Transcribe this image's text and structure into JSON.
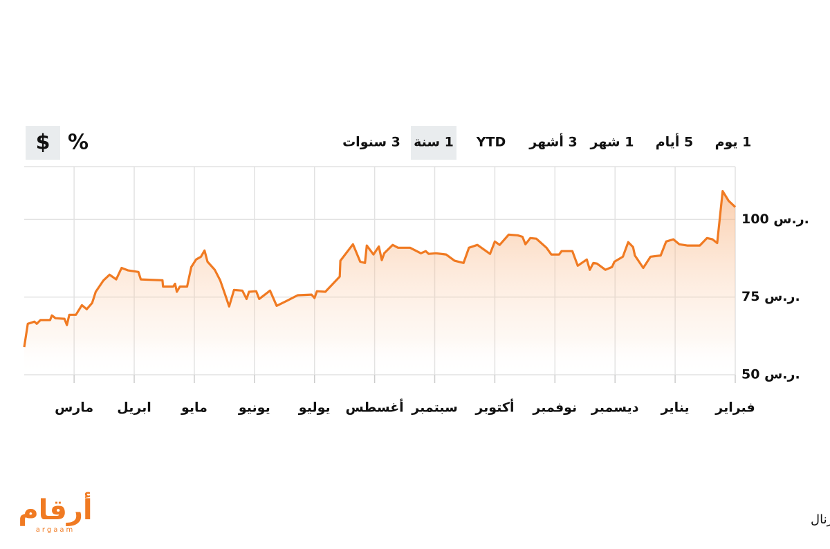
{
  "chart_data": {
    "type": "line",
    "range_buttons": [
      "1 يوم",
      "5 أيام",
      "1 شهر",
      "3 أشهر",
      "YTD",
      "1 سنة",
      "3 سنوات"
    ],
    "active_range": 5,
    "unit_buttons": [
      "%",
      "$"
    ],
    "active_unit": 1,
    "x": [
      0.17,
      0.23,
      0.34,
      0.38,
      0.44,
      0.6,
      0.63,
      0.69,
      0.84,
      0.88,
      0.92,
      1.03,
      1.13,
      1.21,
      1.3,
      1.36,
      1.49,
      1.59,
      1.7,
      1.79,
      1.9,
      2.07,
      2.11,
      2.47,
      2.48,
      2.65,
      2.68,
      2.71,
      2.76,
      2.88,
      2.95,
      3.03,
      3.11,
      3.17,
      3.22,
      3.34,
      3.43,
      3.51,
      3.58,
      3.66,
      3.8,
      3.87,
      3.91,
      4.03,
      4.08,
      4.26,
      4.37,
      4.54,
      4.72,
      4.95,
      5.0,
      5.04,
      5.18,
      5.42,
      5.43,
      5.64,
      5.76,
      5.84,
      5.87,
      5.98,
      6.07,
      6.12,
      6.16,
      6.3,
      6.39,
      6.59,
      6.77,
      6.85,
      6.9,
      7.02,
      7.19,
      7.33,
      7.48,
      7.57,
      7.71,
      7.92,
      8.0,
      8.08,
      8.23,
      8.38,
      8.46,
      8.51,
      8.59,
      8.69,
      8.86,
      8.94,
      9.07,
      9.11,
      9.29,
      9.38,
      9.53,
      9.58,
      9.64,
      9.7,
      9.84,
      9.95,
      9.99,
      10.13,
      10.22,
      10.3,
      10.33,
      10.47,
      10.59,
      10.76,
      10.85,
      10.97,
      11.07,
      11.2,
      11.41,
      11.53,
      11.62,
      11.7,
      11.79,
      11.89,
      12.0
    ],
    "series": [
      {
        "color": "#f07a22",
        "values": [
          58.9,
          66.4,
          67.1,
          66.4,
          67.6,
          67.6,
          69.1,
          68.2,
          68.0,
          66.0,
          69.3,
          69.3,
          72.4,
          71.1,
          73.1,
          76.7,
          80.4,
          82.2,
          80.7,
          84.4,
          83.6,
          83.1,
          80.7,
          80.4,
          78.4,
          78.4,
          79.3,
          76.7,
          78.4,
          78.4,
          84.7,
          87.1,
          88.0,
          90.0,
          86.4,
          83.8,
          80.4,
          76.0,
          72.0,
          77.3,
          77.1,
          74.4,
          76.7,
          76.9,
          74.4,
          77.1,
          72.2,
          73.8,
          75.6,
          75.8,
          74.7,
          76.9,
          76.7,
          81.6,
          86.7,
          92.0,
          86.4,
          86.0,
          91.6,
          88.7,
          91.3,
          86.9,
          89.1,
          91.8,
          90.9,
          90.9,
          89.1,
          89.8,
          88.9,
          89.1,
          88.7,
          86.7,
          86.0,
          90.9,
          91.8,
          88.9,
          92.9,
          91.8,
          95.1,
          94.9,
          94.4,
          92.0,
          94.0,
          93.8,
          90.9,
          88.7,
          88.7,
          89.8,
          89.8,
          85.1,
          87.1,
          83.8,
          86.0,
          85.8,
          83.8,
          84.7,
          86.4,
          88.0,
          92.7,
          91.1,
          88.4,
          84.4,
          88.0,
          88.4,
          92.9,
          93.6,
          92.0,
          91.6,
          91.6,
          94.0,
          93.6,
          92.4,
          109.1,
          106.0,
          104.0
        ]
      }
    ],
    "xlim": [
      0.17,
      12
    ],
    "xticks": [
      {
        "value": 1,
        "label": "مارس"
      },
      {
        "value": 2,
        "label": "ابريل"
      },
      {
        "value": 3,
        "label": "مايو"
      },
      {
        "value": 4,
        "label": "يونيو"
      },
      {
        "value": 5,
        "label": "يوليو"
      },
      {
        "value": 6,
        "label": "أغسطس"
      },
      {
        "value": 7,
        "label": "سبتمبر"
      },
      {
        "value": 8,
        "label": "أكتوبر"
      },
      {
        "value": 9,
        "label": "نوفمبر"
      },
      {
        "value": 10,
        "label": "ديسمبر"
      },
      {
        "value": 11,
        "label": "يناير"
      },
      {
        "value": 12,
        "label": "فبراير"
      }
    ],
    "ylim": [
      50,
      117
    ],
    "yticks": [
      {
        "value": 50,
        "label": "50 ر.س."
      },
      {
        "value": 75,
        "label": "75 ر.س."
      },
      {
        "value": 100,
        "label": "100 ر.س."
      }
    ],
    "grid": true,
    "source": "المصدر: وول ستريت جورنال",
    "logo": "أرقام",
    "logo_sub": "argaam"
  }
}
